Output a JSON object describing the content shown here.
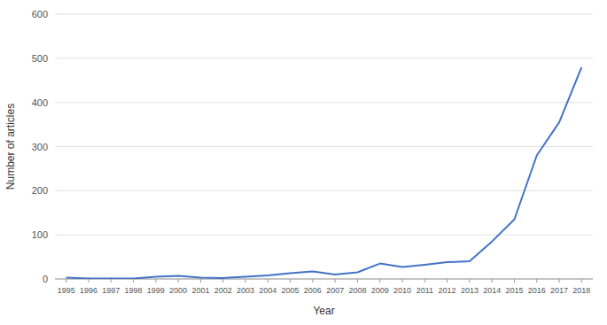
{
  "chart_data": {
    "type": "line",
    "x": [
      1995,
      1996,
      1997,
      1998,
      1999,
      2000,
      2001,
      2002,
      2003,
      2004,
      2005,
      2006,
      2007,
      2008,
      2009,
      2010,
      2011,
      2012,
      2013,
      2014,
      2015,
      2016,
      2017,
      2018
    ],
    "values": [
      3,
      1,
      1,
      1,
      5,
      7,
      3,
      2,
      5,
      8,
      13,
      17,
      10,
      15,
      35,
      27,
      32,
      38,
      40,
      85,
      135,
      280,
      355,
      480
    ],
    "color": "#4472C4",
    "xlabel": "Year",
    "ylabel": "Number of articles",
    "xlim": [
      1994.5,
      2018.5
    ],
    "xticks": [
      1995,
      1996,
      1997,
      1998,
      1999,
      2000,
      2001,
      2002,
      2003,
      2004,
      2005,
      2006,
      2007,
      2008,
      2009,
      2010,
      2011,
      2012,
      2013,
      2014,
      2015,
      2016,
      2017,
      2018
    ],
    "ylim": [
      0,
      600
    ],
    "yticks": [
      0,
      100,
      200,
      300,
      400,
      500,
      600
    ],
    "grid": true
  }
}
